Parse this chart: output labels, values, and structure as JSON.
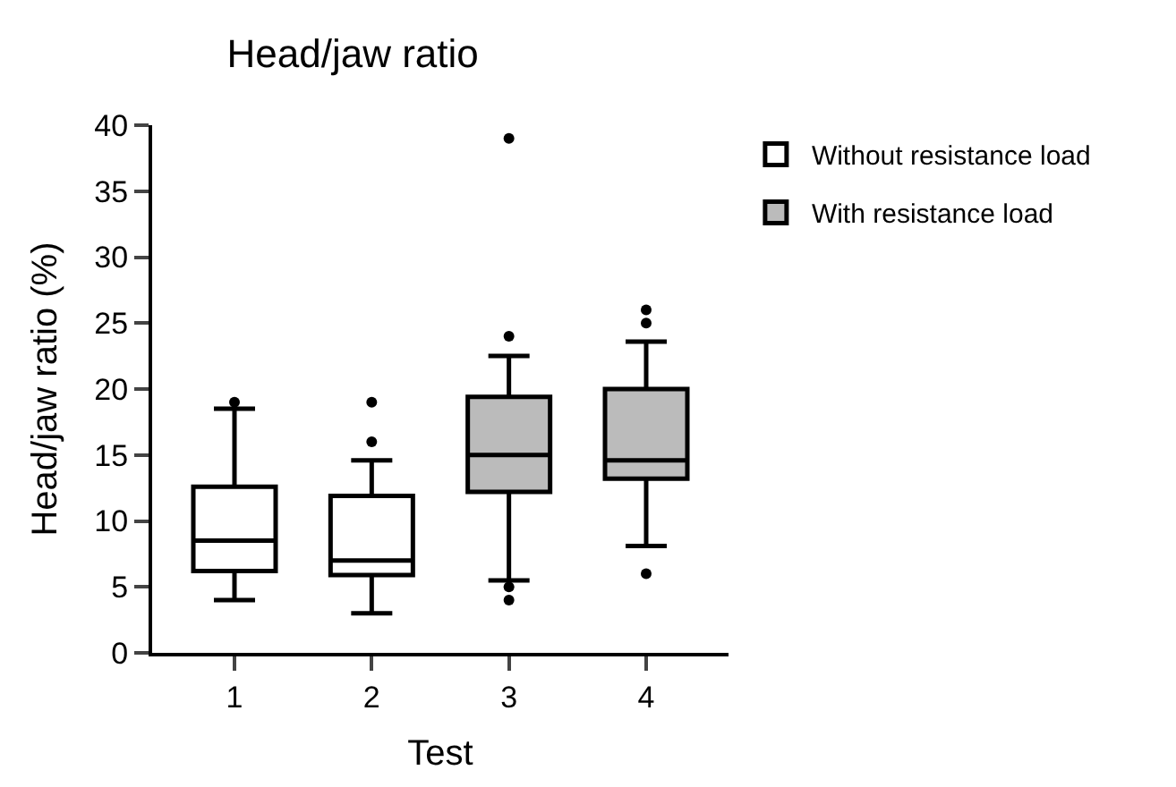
{
  "chart_data": {
    "type": "box",
    "title": "Head/jaw ratio",
    "xlabel": "Test",
    "ylabel": "Head/jaw ratio (%)",
    "categories": [
      "1",
      "2",
      "3",
      "4"
    ],
    "series": [
      {
        "name": "Without resistance load",
        "color": "#000000",
        "boxes": [
          {
            "low": 4.0,
            "q1": 6.2,
            "median": 8.5,
            "q3": 12.6,
            "high": 18.5,
            "outliers": [
              19.0
            ]
          },
          {
            "low": 3.0,
            "q1": 5.9,
            "median": 7.0,
            "q3": 11.9,
            "high": 14.6,
            "outliers": [
              16.0,
              19.0
            ]
          },
          null,
          null
        ]
      },
      {
        "name": "With resistance load",
        "color": "#000000",
        "boxes": [
          null,
          null,
          {
            "low": 5.5,
            "q1": 12.2,
            "median": 15.0,
            "q3": 19.4,
            "high": 22.5,
            "outliers": [
              4.0,
              5.0,
              24.0,
              39.0
            ]
          },
          {
            "low": 8.1,
            "q1": 13.2,
            "median": 14.6,
            "q3": 20.0,
            "high": 23.6,
            "outliers": [
              6.0,
              25.0,
              26.0
            ]
          }
        ]
      }
    ],
    "ylim": [
      0,
      40
    ],
    "yticks": [
      0,
      5,
      10,
      15,
      20,
      25,
      30,
      35,
      40
    ],
    "legend": "top right"
  }
}
